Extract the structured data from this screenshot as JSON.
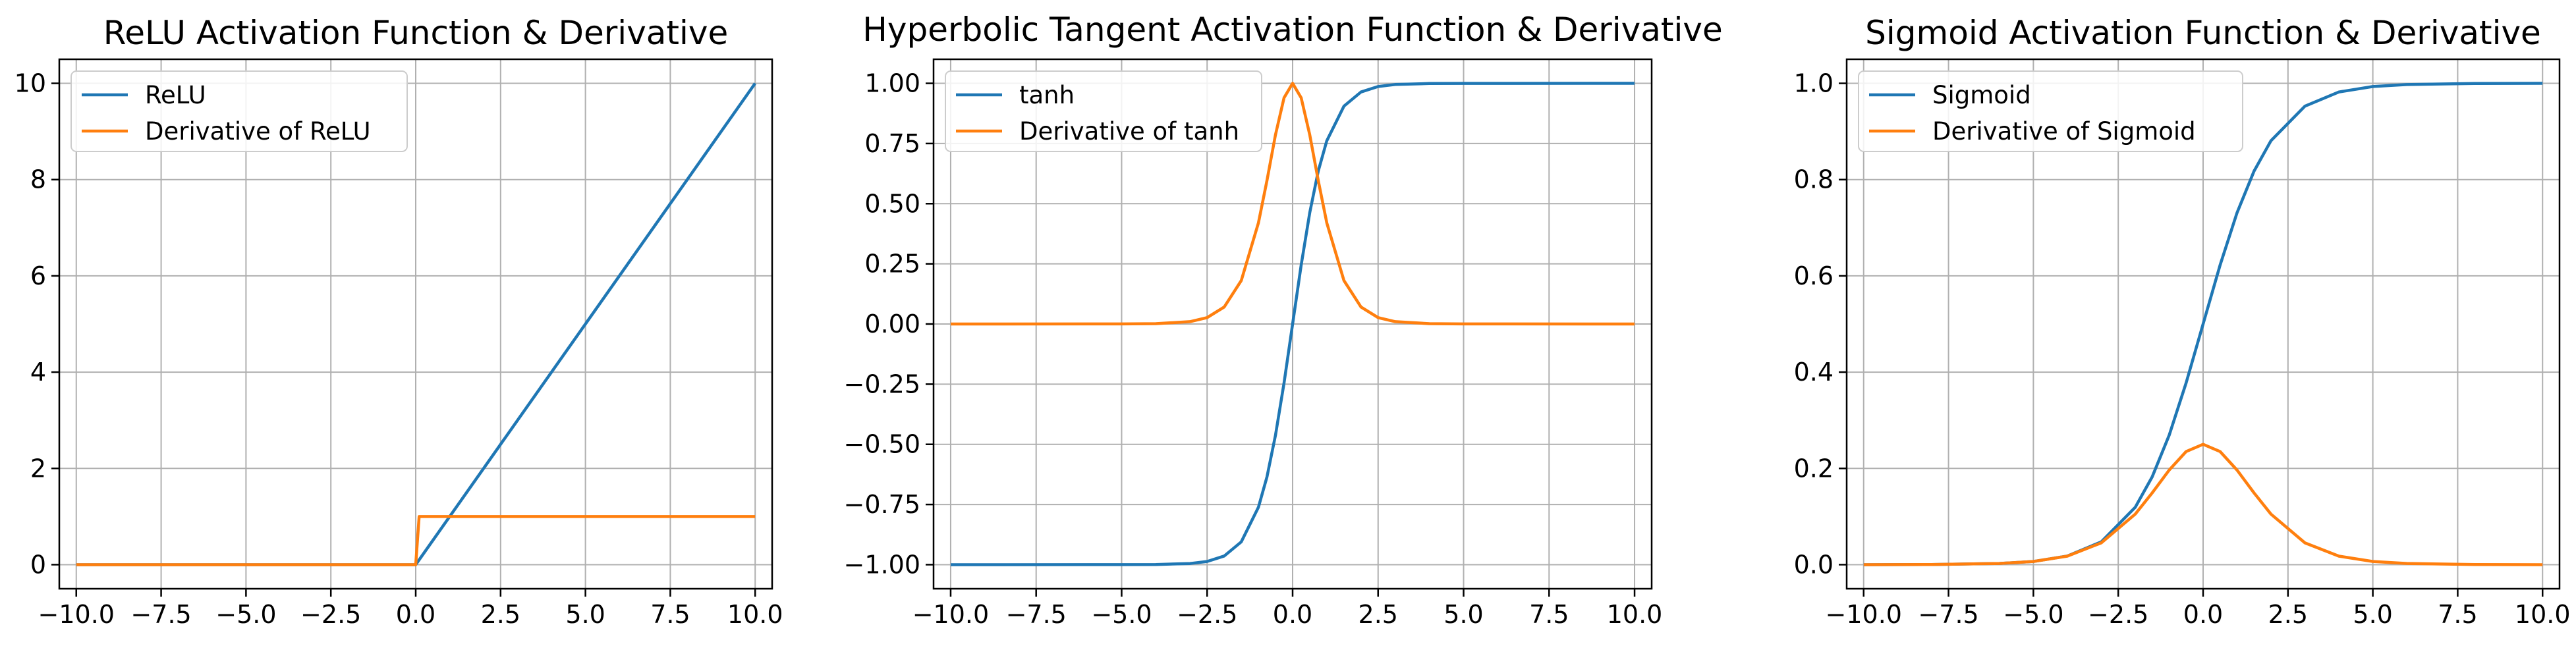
{
  "colors": {
    "function_line": "#1f77b4",
    "derivative_line": "#ff7f0e",
    "grid": "#b0b0b0",
    "axis": "#000000",
    "legend_border": "#cccccc"
  },
  "chart_data": [
    {
      "type": "line",
      "title": "ReLU Activation Function & Derivative",
      "xlabel": "",
      "ylabel": "",
      "xlim": [
        -10.5,
        10.5
      ],
      "ylim": [
        -0.5,
        10.5
      ],
      "xticks": [
        -10.0,
        -7.5,
        -5.0,
        -2.5,
        0.0,
        2.5,
        5.0,
        7.5,
        10.0
      ],
      "xtick_labels": [
        "−10.0",
        "−7.5",
        "−5.0",
        "−2.5",
        "0.0",
        "2.5",
        "5.0",
        "7.5",
        "10.0"
      ],
      "yticks": [
        0,
        2,
        4,
        6,
        8,
        10
      ],
      "ytick_labels": [
        "0",
        "2",
        "4",
        "6",
        "8",
        "10"
      ],
      "grid": true,
      "legend_position": "upper-left",
      "series": [
        {
          "name": "ReLU",
          "color": "#1f77b4",
          "x": [
            -10,
            0,
            10
          ],
          "y": [
            0,
            0,
            10
          ]
        },
        {
          "name": "Derivative of ReLU",
          "color": "#ff7f0e",
          "x": [
            -10,
            0,
            0.1,
            10
          ],
          "y": [
            0,
            0,
            1,
            1
          ]
        }
      ]
    },
    {
      "type": "line",
      "title": "Hyperbolic Tangent Activation Function & Derivative",
      "xlabel": "",
      "ylabel": "",
      "xlim": [
        -10.5,
        10.5
      ],
      "ylim": [
        -1.1,
        1.1
      ],
      "xticks": [
        -10.0,
        -7.5,
        -5.0,
        -2.5,
        0.0,
        2.5,
        5.0,
        7.5,
        10.0
      ],
      "xtick_labels": [
        "−10.0",
        "−7.5",
        "−5.0",
        "−2.5",
        "0.0",
        "2.5",
        "5.0",
        "7.5",
        "10.0"
      ],
      "yticks": [
        -1.0,
        -0.75,
        -0.5,
        -0.25,
        0.0,
        0.25,
        0.5,
        0.75,
        1.0
      ],
      "ytick_labels": [
        "−1.00",
        "−0.75",
        "−0.50",
        "−0.25",
        "0.00",
        "0.25",
        "0.50",
        "0.75",
        "1.00"
      ],
      "grid": true,
      "legend_position": "upper-left",
      "series": [
        {
          "name": "tanh",
          "color": "#1f77b4",
          "x": [
            -10,
            -5,
            -4,
            -3,
            -2.5,
            -2,
            -1.5,
            -1,
            -0.75,
            -0.5,
            -0.25,
            0,
            0.25,
            0.5,
            0.75,
            1,
            1.5,
            2,
            2.5,
            3,
            4,
            5,
            10
          ],
          "y": [
            -1.0,
            -0.9999,
            -0.9993,
            -0.9951,
            -0.9866,
            -0.964,
            -0.9051,
            -0.7616,
            -0.6351,
            -0.4621,
            -0.2449,
            0.0,
            0.2449,
            0.4621,
            0.6351,
            0.7616,
            0.9051,
            0.964,
            0.9866,
            0.9951,
            0.9993,
            0.9999,
            1.0
          ]
        },
        {
          "name": "Derivative of tanh",
          "color": "#ff7f0e",
          "x": [
            -10,
            -5,
            -4,
            -3,
            -2.5,
            -2,
            -1.5,
            -1,
            -0.75,
            -0.5,
            -0.25,
            0,
            0.25,
            0.5,
            0.75,
            1,
            1.5,
            2,
            2.5,
            3,
            4,
            5,
            10
          ],
          "y": [
            0.0,
            0.0002,
            0.0013,
            0.0099,
            0.0266,
            0.0707,
            0.1807,
            0.42,
            0.5966,
            0.7864,
            0.94,
            1.0,
            0.94,
            0.7864,
            0.5966,
            0.42,
            0.1807,
            0.0707,
            0.0266,
            0.0099,
            0.0013,
            0.0002,
            0.0
          ]
        }
      ]
    },
    {
      "type": "line",
      "title": "Sigmoid Activation Function & Derivative",
      "xlabel": "",
      "ylabel": "",
      "xlim": [
        -10.5,
        10.5
      ],
      "ylim": [
        -0.05,
        1.05
      ],
      "xticks": [
        -10.0,
        -7.5,
        -5.0,
        -2.5,
        0.0,
        2.5,
        5.0,
        7.5,
        10.0
      ],
      "xtick_labels": [
        "−10.0",
        "−7.5",
        "−5.0",
        "−2.5",
        "0.0",
        "2.5",
        "5.0",
        "7.5",
        "10.0"
      ],
      "yticks": [
        0.0,
        0.2,
        0.4,
        0.6,
        0.8,
        1.0
      ],
      "ytick_labels": [
        "0.0",
        "0.2",
        "0.4",
        "0.6",
        "0.8",
        "1.0"
      ],
      "grid": true,
      "legend_position": "upper-left",
      "series": [
        {
          "name": "Sigmoid",
          "color": "#1f77b4",
          "x": [
            -10,
            -8,
            -6,
            -5,
            -4,
            -3,
            -2,
            -1.5,
            -1,
            -0.5,
            0,
            0.5,
            1,
            1.5,
            2,
            3,
            4,
            5,
            6,
            8,
            10
          ],
          "y": [
            0.0,
            0.0003,
            0.0025,
            0.0067,
            0.018,
            0.0474,
            0.1192,
            0.1824,
            0.2689,
            0.3775,
            0.5,
            0.6225,
            0.7311,
            0.8176,
            0.8808,
            0.9526,
            0.982,
            0.9933,
            0.9975,
            0.9997,
            1.0
          ]
        },
        {
          "name": "Derivative of Sigmoid",
          "color": "#ff7f0e",
          "x": [
            -10,
            -8,
            -6,
            -5,
            -4,
            -3,
            -2,
            -1.5,
            -1,
            -0.5,
            0,
            0.5,
            1,
            1.5,
            2,
            3,
            4,
            5,
            6,
            8,
            10
          ],
          "y": [
            0.0,
            0.0003,
            0.0025,
            0.0066,
            0.0177,
            0.0452,
            0.105,
            0.1491,
            0.1966,
            0.235,
            0.25,
            0.235,
            0.1966,
            0.1491,
            0.105,
            0.0452,
            0.0177,
            0.0066,
            0.0025,
            0.0003,
            0.0
          ]
        }
      ]
    }
  ]
}
